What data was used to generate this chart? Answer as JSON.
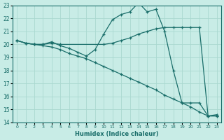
{
  "xlabel": "Humidex (Indice chaleur)",
  "xlim": [
    -0.5,
    23.5
  ],
  "ylim": [
    14,
    23
  ],
  "xticks": [
    0,
    1,
    2,
    3,
    4,
    5,
    6,
    7,
    8,
    9,
    10,
    11,
    12,
    13,
    14,
    15,
    16,
    17,
    18,
    19,
    20,
    21,
    22,
    23
  ],
  "yticks": [
    14,
    15,
    16,
    17,
    18,
    19,
    20,
    21,
    22,
    23
  ],
  "bg_color": "#c8ece6",
  "line_color": "#1a6e6a",
  "grid_color": "#aad8d0",
  "series": [
    {
      "x": [
        0,
        1,
        2,
        3,
        4,
        5,
        10,
        11,
        12,
        13,
        14,
        15,
        16,
        17,
        18,
        19,
        20,
        21,
        22,
        23
      ],
      "y": [
        20.3,
        20.1,
        20.0,
        20.0,
        20.1,
        20.0,
        20.0,
        20.1,
        20.3,
        20.5,
        20.8,
        21.0,
        21.2,
        21.3,
        21.3,
        21.3,
        21.3,
        21.3,
        14.5,
        14.5
      ]
    },
    {
      "x": [
        0,
        1,
        2,
        3,
        4,
        5,
        6,
        7,
        8,
        9,
        10,
        11,
        12,
        13,
        14,
        15,
        16,
        17,
        18,
        19,
        20,
        21,
        22,
        23
      ],
      "y": [
        20.3,
        20.1,
        20.0,
        20.0,
        20.2,
        19.9,
        19.7,
        19.4,
        19.1,
        19.6,
        20.8,
        21.9,
        22.3,
        22.5,
        23.2,
        22.5,
        22.7,
        21.0,
        18.0,
        15.5,
        15.5,
        15.5,
        14.5,
        14.6
      ]
    },
    {
      "x": [
        0,
        1,
        2,
        3,
        4,
        5,
        6,
        7,
        8,
        9,
        10,
        11,
        12,
        13,
        14,
        15,
        16,
        17,
        18,
        19,
        20,
        21,
        22,
        23
      ],
      "y": [
        20.3,
        20.1,
        20.0,
        19.9,
        19.8,
        19.6,
        19.3,
        19.1,
        18.9,
        18.6,
        18.3,
        18.0,
        17.7,
        17.4,
        17.1,
        16.8,
        16.5,
        16.1,
        15.8,
        15.5,
        15.2,
        14.8,
        14.5,
        14.5
      ]
    }
  ]
}
